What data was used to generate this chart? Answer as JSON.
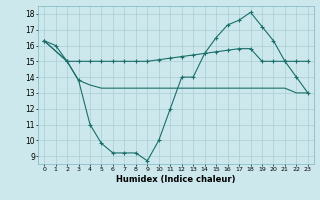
{
  "xlabel": "Humidex (Indice chaleur)",
  "background_color": "#cce8ed",
  "grid_color": "#aacdd4",
  "line_color": "#1a6e6a",
  "xlim": [
    -0.5,
    23.5
  ],
  "ylim": [
    8.5,
    18.5
  ],
  "xticks": [
    0,
    1,
    2,
    3,
    4,
    5,
    6,
    7,
    8,
    9,
    10,
    11,
    12,
    13,
    14,
    15,
    16,
    17,
    18,
    19,
    20,
    21,
    22,
    23
  ],
  "yticks": [
    9,
    10,
    11,
    12,
    13,
    14,
    15,
    16,
    17,
    18
  ],
  "line1_x": [
    0,
    1,
    2,
    3,
    4,
    5,
    6,
    7,
    8,
    9,
    10,
    11,
    12,
    13,
    14,
    15,
    16,
    17,
    18,
    19,
    20,
    21,
    22,
    23
  ],
  "line1_y": [
    16.3,
    16.0,
    15.0,
    15.0,
    15.0,
    15.0,
    15.0,
    15.0,
    15.0,
    15.0,
    15.1,
    15.2,
    15.3,
    15.4,
    15.5,
    15.6,
    15.7,
    15.8,
    15.8,
    15.0,
    15.0,
    15.0,
    15.0,
    15.0
  ],
  "line2_x": [
    0,
    2,
    3,
    4,
    5,
    6,
    7,
    8,
    9,
    10,
    11,
    12,
    13,
    14,
    15,
    16,
    17,
    18,
    19,
    20,
    21,
    22,
    23
  ],
  "line2_y": [
    16.3,
    15.0,
    13.8,
    11.0,
    9.8,
    9.2,
    9.2,
    9.2,
    8.7,
    10.0,
    12.0,
    14.0,
    14.0,
    15.5,
    16.5,
    17.3,
    17.6,
    18.1,
    17.2,
    16.3,
    15.0,
    14.0,
    13.0
  ],
  "line3_x": [
    0,
    2,
    3,
    4,
    5,
    6,
    7,
    8,
    9,
    10,
    11,
    12,
    13,
    14,
    15,
    16,
    17,
    18,
    19,
    20,
    21,
    22,
    23
  ],
  "line3_y": [
    16.3,
    15.0,
    13.8,
    13.5,
    13.3,
    13.3,
    13.3,
    13.3,
    13.3,
    13.3,
    13.3,
    13.3,
    13.3,
    13.3,
    13.3,
    13.3,
    13.3,
    13.3,
    13.3,
    13.3,
    13.3,
    13.0,
    13.0
  ]
}
